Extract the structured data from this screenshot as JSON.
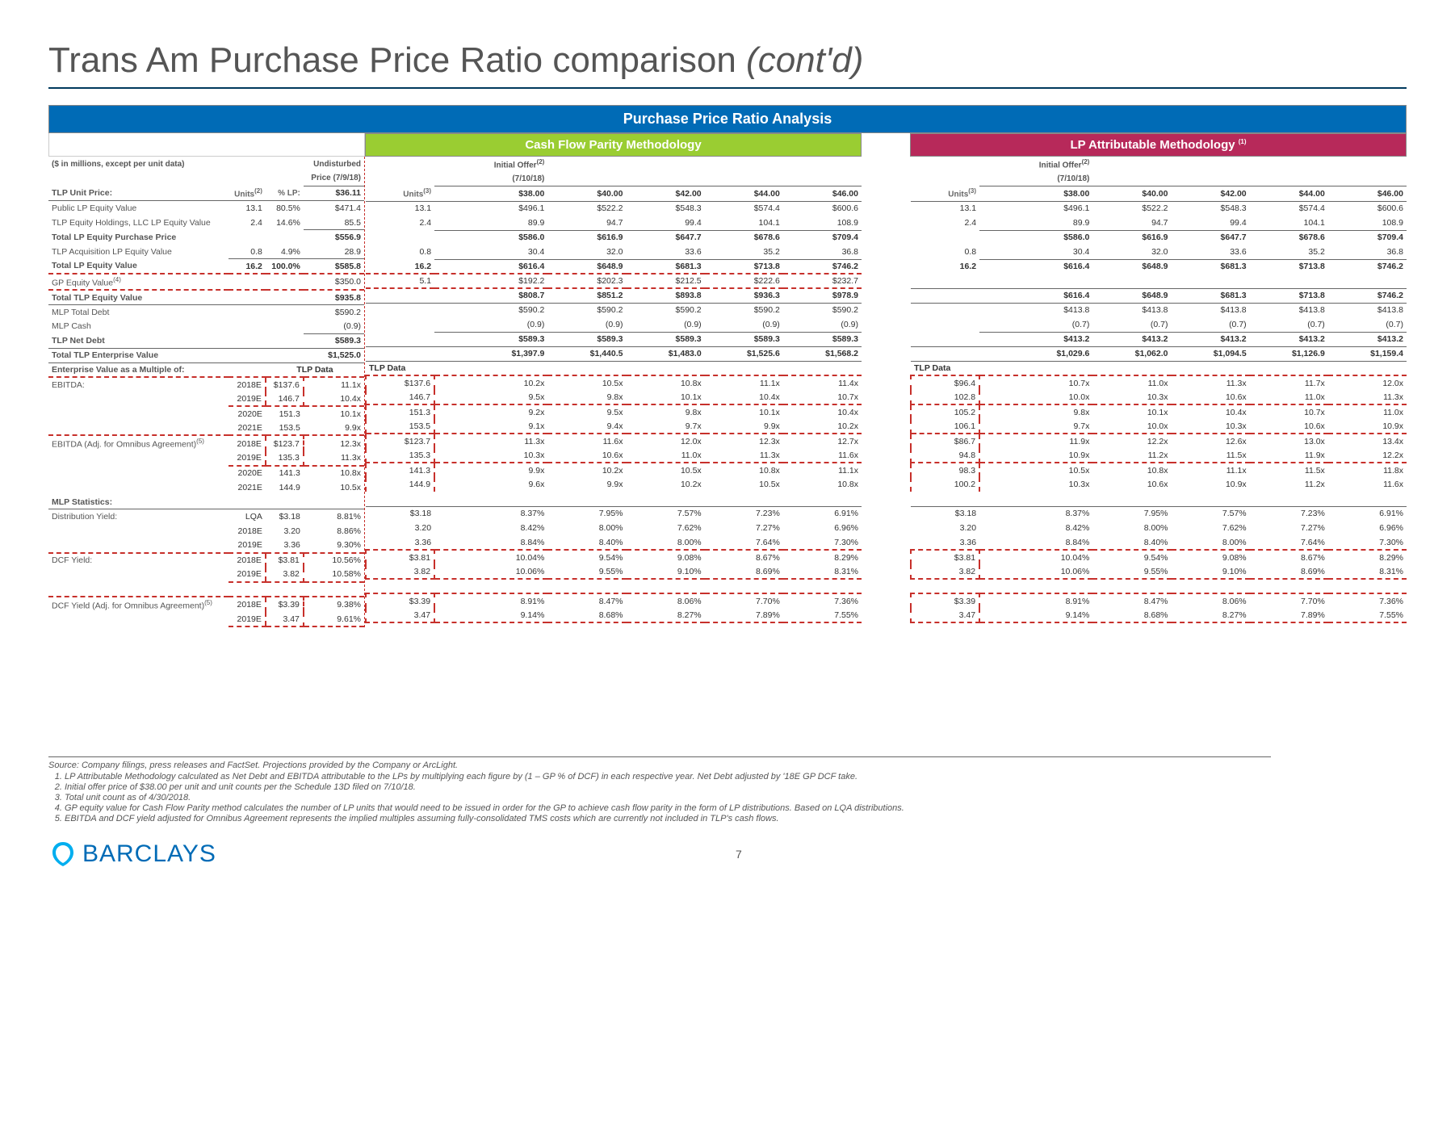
{
  "title_main": "Trans Am Purchase Price Ratio comparison ",
  "title_italic": "(cont'd)",
  "header_main": "Purchase Price Ratio Analysis",
  "header_cash": "Cash Flow Parity Methodology",
  "header_lp": "LP Attributable Methodology ",
  "header_lp_sup": "(1)",
  "left": {
    "meta_label": "($ in millions, except per unit data)",
    "undist_label1": "Undisturbed",
    "undist_label2": "Price (7/9/18)",
    "units_label": "Units",
    "units_sup": "(2)",
    "pct_lp": "% LP:",
    "rows_unit": {
      "tlp_unit_price": {
        "l": "TLP Unit Price:",
        "v": "$36.11"
      },
      "public_lp": {
        "l": "Public LP Equity Value",
        "u": "13.1",
        "p": "80.5%",
        "v": "$471.4"
      },
      "tlp_eq_hold": {
        "l": "TLP Equity Holdings, LLC LP Equity Value",
        "u": "2.4",
        "p": "14.6%",
        "v": "85.5"
      },
      "total_pp": {
        "l": "Total LP Equity Purchase Price",
        "v": "$556.9"
      },
      "tlp_acq": {
        "l": "TLP Acquisition LP Equity Value",
        "u": "0.8",
        "p": "4.9%",
        "v": "28.9"
      },
      "total_lp": {
        "l": "Total LP Equity Value",
        "u": "16.2",
        "p": "100.0%",
        "v": "$585.8"
      },
      "gp_eq": {
        "l": "GP Equity Value",
        "sup": "(4)",
        "v": "$350.0"
      },
      "tot_tlp_eq": {
        "l": "Total TLP Equity Value",
        "v": "$935.8"
      },
      "mlp_debt": {
        "l": "MLP Total Debt",
        "v": "$590.2"
      },
      "mlp_cash": {
        "l": "MLP Cash",
        "v": "(0.9)"
      },
      "tlp_net": {
        "l": "TLP Net Debt",
        "v": "$589.3"
      },
      "tot_ev": {
        "l": "Total TLP Enterprise Value",
        "v": "$1,525.0"
      }
    },
    "multiples_hdr": "Enterprise Value as a Multiple of:",
    "tlp_data": "TLP Data",
    "ebitda_label": "EBITDA:",
    "ebitda_adj_label": "EBITDA (Adj. for Omnibus Agreement)",
    "ebitda_adj_sup": "(5)",
    "years": [
      "2018E",
      "2019E",
      "2020E",
      "2021E"
    ],
    "ebitda": [
      {
        "d": "$137.6",
        "m": "11.1x"
      },
      {
        "d": "146.7",
        "m": "10.4x"
      },
      {
        "d": "151.3",
        "m": "10.1x"
      },
      {
        "d": "153.5",
        "m": "9.9x"
      }
    ],
    "ebitda_adj": [
      {
        "d": "$123.7",
        "m": "12.3x"
      },
      {
        "d": "135.3",
        "m": "11.3x"
      },
      {
        "d": "141.3",
        "m": "10.8x"
      },
      {
        "d": "144.9",
        "m": "10.5x"
      }
    ],
    "mlp_stats": "MLP Statistics:",
    "dist_yield": "Distribution Yield:",
    "dcf_yield": "DCF Yield:",
    "dcf_adj": "DCF Yield (Adj. for Omnibus Agreement)",
    "dcf_adj_sup": "(5)",
    "dist": [
      {
        "y": "LQA",
        "d": "$3.18",
        "m": "8.81%"
      },
      {
        "y": "2018E",
        "d": "3.20",
        "m": "8.86%"
      },
      {
        "y": "2019E",
        "d": "3.36",
        "m": "9.30%"
      }
    ],
    "dcf": [
      {
        "y": "2018E",
        "d": "$3.81",
        "m": "10.56%"
      },
      {
        "y": "2019E",
        "d": "3.82",
        "m": "10.58%"
      }
    ],
    "dcf_a": [
      {
        "y": "2018E",
        "d": "$3.39",
        "m": "9.38%"
      },
      {
        "y": "2019E",
        "d": "3.47",
        "m": "9.61%"
      }
    ]
  },
  "cash": {
    "initial1": "Initial Offer",
    "initial_sup": "(2)",
    "initial2": "(7/10/18)",
    "prices": [
      "$38.00",
      "$40.00",
      "$42.00",
      "$44.00",
      "$46.00"
    ],
    "units_hdr": "Units",
    "units_sup": "(3)",
    "unit_rows": {
      "public": [
        "13.1",
        "$496.1",
        "$522.2",
        "$548.3",
        "$574.4",
        "$600.6"
      ],
      "hold": [
        "2.4",
        "89.9",
        "94.7",
        "99.4",
        "104.1",
        "108.9"
      ],
      "tot_pp": [
        "",
        "$586.0",
        "$616.9",
        "$647.7",
        "$678.6",
        "$709.4"
      ],
      "acq": [
        "0.8",
        "30.4",
        "32.0",
        "33.6",
        "35.2",
        "36.8"
      ],
      "tot_lp": [
        "16.2",
        "$616.4",
        "$648.9",
        "$681.3",
        "$713.8",
        "$746.2"
      ],
      "gp": [
        "5.1",
        "$192.2",
        "$202.3",
        "$212.5",
        "$222.6",
        "$232.7"
      ],
      "tot_eq": [
        "",
        "$808.7",
        "$851.2",
        "$893.8",
        "$936.3",
        "$978.9"
      ],
      "mlp_d": [
        "",
        "$590.2",
        "$590.2",
        "$590.2",
        "$590.2",
        "$590.2"
      ],
      "mlp_c": [
        "",
        "(0.9)",
        "(0.9)",
        "(0.9)",
        "(0.9)",
        "(0.9)"
      ],
      "net": [
        "",
        "$589.3",
        "$589.3",
        "$589.3",
        "$589.3",
        "$589.3"
      ],
      "ev": [
        "",
        "$1,397.9",
        "$1,440.5",
        "$1,483.0",
        "$1,525.6",
        "$1,568.2"
      ]
    },
    "ebitda": [
      [
        "$137.6",
        "10.2x",
        "10.5x",
        "10.8x",
        "11.1x",
        "11.4x"
      ],
      [
        "146.7",
        "9.5x",
        "9.8x",
        "10.1x",
        "10.4x",
        "10.7x"
      ],
      [
        "151.3",
        "9.2x",
        "9.5x",
        "9.8x",
        "10.1x",
        "10.4x"
      ],
      [
        "153.5",
        "9.1x",
        "9.4x",
        "9.7x",
        "9.9x",
        "10.2x"
      ]
    ],
    "ebitda_adj": [
      [
        "$123.7",
        "11.3x",
        "11.6x",
        "12.0x",
        "12.3x",
        "12.7x"
      ],
      [
        "135.3",
        "10.3x",
        "10.6x",
        "11.0x",
        "11.3x",
        "11.6x"
      ],
      [
        "141.3",
        "9.9x",
        "10.2x",
        "10.5x",
        "10.8x",
        "11.1x"
      ],
      [
        "144.9",
        "9.6x",
        "9.9x",
        "10.2x",
        "10.5x",
        "10.8x"
      ]
    ],
    "dist": [
      [
        "$3.18",
        "8.37%",
        "7.95%",
        "7.57%",
        "7.23%",
        "6.91%"
      ],
      [
        "3.20",
        "8.42%",
        "8.00%",
        "7.62%",
        "7.27%",
        "6.96%"
      ],
      [
        "3.36",
        "8.84%",
        "8.40%",
        "8.00%",
        "7.64%",
        "7.30%"
      ]
    ],
    "dcf": [
      [
        "$3.81",
        "10.04%",
        "9.54%",
        "9.08%",
        "8.67%",
        "8.29%"
      ],
      [
        "3.82",
        "10.06%",
        "9.55%",
        "9.10%",
        "8.69%",
        "8.31%"
      ]
    ],
    "dcf_a": [
      [
        "$3.39",
        "8.91%",
        "8.47%",
        "8.06%",
        "7.70%",
        "7.36%"
      ],
      [
        "3.47",
        "9.14%",
        "8.68%",
        "8.27%",
        "7.89%",
        "7.55%"
      ]
    ]
  },
  "lp": {
    "initial1": "Initial Offer",
    "initial_sup": "(2)",
    "initial2": "(7/10/18)",
    "prices": [
      "$38.00",
      "$40.00",
      "$42.00",
      "$44.00",
      "$46.00"
    ],
    "units_hdr": "Units",
    "units_sup": "(3)",
    "unit_rows": {
      "public": [
        "13.1",
        "$496.1",
        "$522.2",
        "$548.3",
        "$574.4",
        "$600.6"
      ],
      "hold": [
        "2.4",
        "89.9",
        "94.7",
        "99.4",
        "104.1",
        "108.9"
      ],
      "tot_pp": [
        "",
        "$586.0",
        "$616.9",
        "$647.7",
        "$678.6",
        "$709.4"
      ],
      "acq": [
        "0.8",
        "30.4",
        "32.0",
        "33.6",
        "35.2",
        "36.8"
      ],
      "tot_lp": [
        "16.2",
        "$616.4",
        "$648.9",
        "$681.3",
        "$713.8",
        "$746.2"
      ],
      "gp": [
        "",
        "",
        "",
        "",
        "",
        ""
      ],
      "tot_eq": [
        "",
        "$616.4",
        "$648.9",
        "$681.3",
        "$713.8",
        "$746.2"
      ],
      "mlp_d": [
        "",
        "$413.8",
        "$413.8",
        "$413.8",
        "$413.8",
        "$413.8"
      ],
      "mlp_c": [
        "",
        "(0.7)",
        "(0.7)",
        "(0.7)",
        "(0.7)",
        "(0.7)"
      ],
      "net": [
        "",
        "$413.2",
        "$413.2",
        "$413.2",
        "$413.2",
        "$413.2"
      ],
      "ev": [
        "",
        "$1,029.6",
        "$1,062.0",
        "$1,094.5",
        "$1,126.9",
        "$1,159.4"
      ]
    },
    "ebitda": [
      [
        "$96.4",
        "10.7x",
        "11.0x",
        "11.3x",
        "11.7x",
        "12.0x"
      ],
      [
        "102.8",
        "10.0x",
        "10.3x",
        "10.6x",
        "11.0x",
        "11.3x"
      ],
      [
        "105.2",
        "9.8x",
        "10.1x",
        "10.4x",
        "10.7x",
        "11.0x"
      ],
      [
        "106.1",
        "9.7x",
        "10.0x",
        "10.3x",
        "10.6x",
        "10.9x"
      ]
    ],
    "ebitda_adj": [
      [
        "$86.7",
        "11.9x",
        "12.2x",
        "12.6x",
        "13.0x",
        "13.4x"
      ],
      [
        "94.8",
        "10.9x",
        "11.2x",
        "11.5x",
        "11.9x",
        "12.2x"
      ],
      [
        "98.3",
        "10.5x",
        "10.8x",
        "11.1x",
        "11.5x",
        "11.8x"
      ],
      [
        "100.2",
        "10.3x",
        "10.6x",
        "10.9x",
        "11.2x",
        "11.6x"
      ]
    ],
    "dist": [
      [
        "$3.18",
        "8.37%",
        "7.95%",
        "7.57%",
        "7.23%",
        "6.91%"
      ],
      [
        "3.20",
        "8.42%",
        "8.00%",
        "7.62%",
        "7.27%",
        "6.96%"
      ],
      [
        "3.36",
        "8.84%",
        "8.40%",
        "8.00%",
        "7.64%",
        "7.30%"
      ]
    ],
    "dcf": [
      [
        "$3.81",
        "10.04%",
        "9.54%",
        "9.08%",
        "8.67%",
        "8.29%"
      ],
      [
        "3.82",
        "10.06%",
        "9.55%",
        "9.10%",
        "8.69%",
        "8.31%"
      ]
    ],
    "dcf_a": [
      [
        "$3.39",
        "8.91%",
        "8.47%",
        "8.06%",
        "7.70%",
        "7.36%"
      ],
      [
        "3.47",
        "9.14%",
        "8.68%",
        "8.27%",
        "7.89%",
        "7.55%"
      ]
    ]
  },
  "source": "Source: Company filings, press releases and FactSet. Projections provided by the Company or ArcLight.",
  "notes": [
    "LP Attributable Methodology calculated as Net Debt and EBITDA attributable to the LPs by multiplying each figure by (1 – GP % of DCF) in each respective year. Net Debt adjusted by '18E GP DCF take.",
    "Initial offer price of $38.00 per unit and unit counts per the Schedule 13D filed on 7/10/18.",
    "Total unit count as of 4/30/2018.",
    "GP equity value for Cash Flow Parity method calculates the number of LP units that would need to be issued in order for the GP to achieve cash flow parity in the form of LP distributions. Based on LQA distributions.",
    "EBITDA and DCF yield adjusted for Omnibus Agreement represents the implied multiples assuming fully-consolidated TMS costs which are currently not included in TLP's cash flows."
  ],
  "logo": "BARCLAYS",
  "page": "7",
  "colors": {
    "blue": "#006bb6",
    "navy": "#00395d",
    "green": "#9acd32",
    "magenta": "#b7295a",
    "red": "#c7302b"
  }
}
